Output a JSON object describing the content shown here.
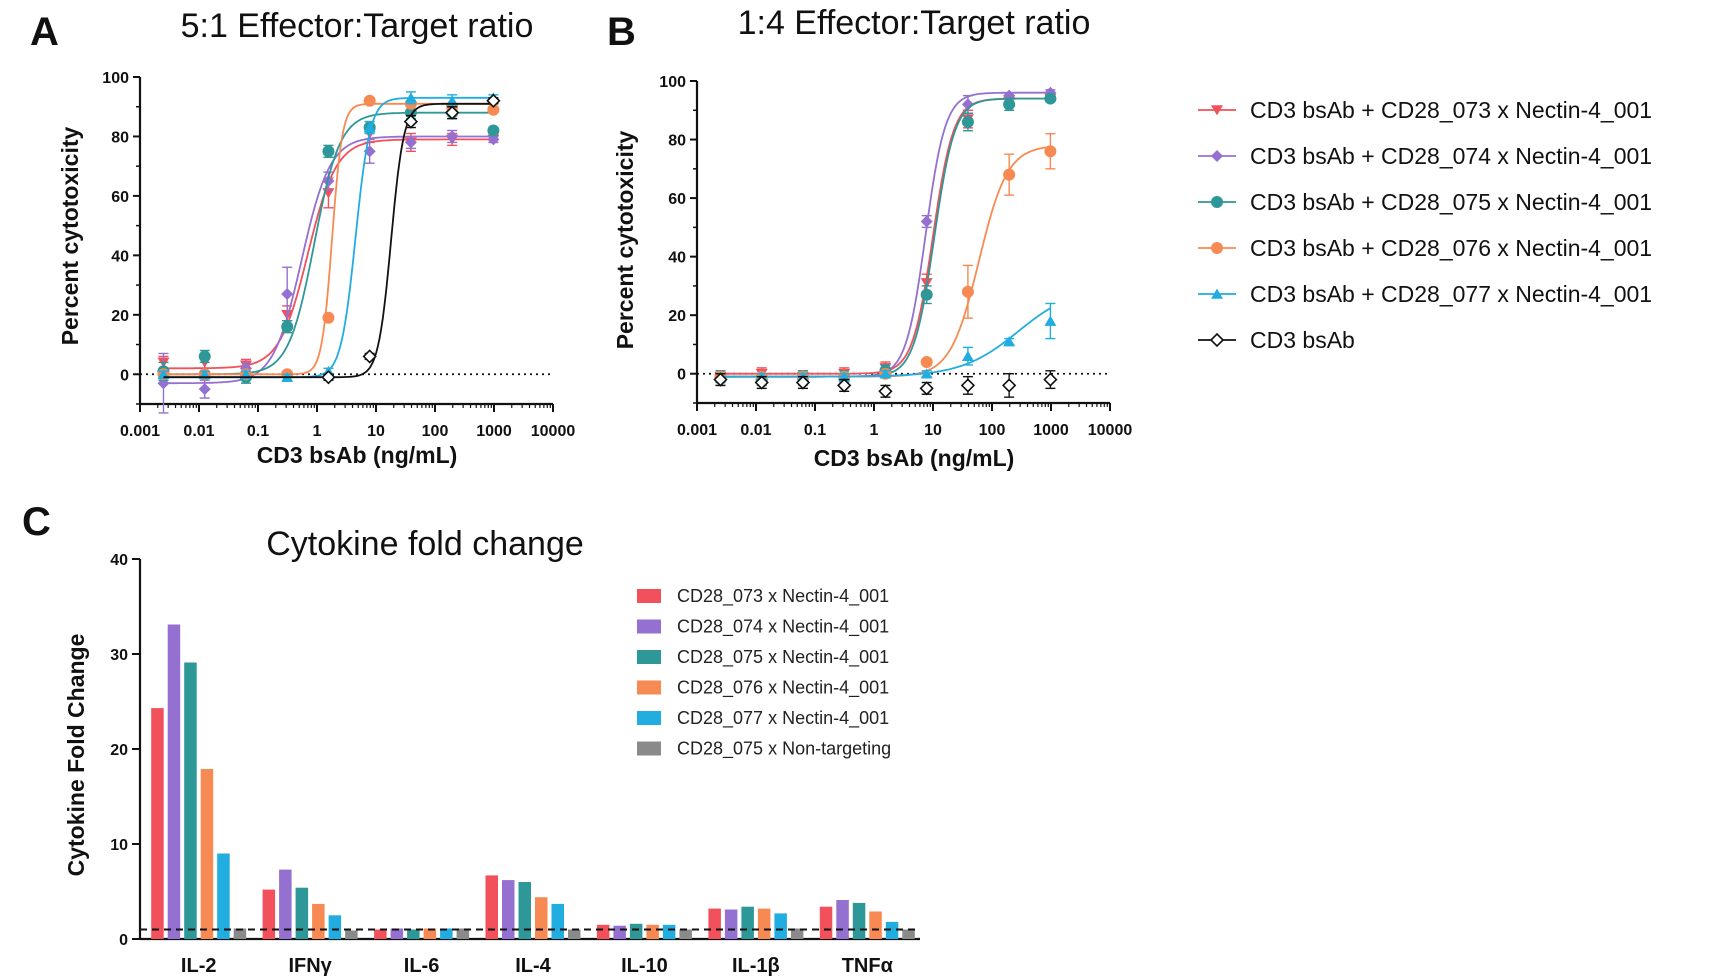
{
  "colors": {
    "s073": "#f2505a",
    "s074": "#9470d0",
    "s075": "#2e9797",
    "s076": "#f78a52",
    "s077": "#21ade0",
    "cd3": "#111111",
    "nontarget": "#8a8a8a"
  },
  "chart_data": [
    {
      "panel": "A",
      "type": "line",
      "title": "5:1 Effector:Target ratio",
      "xlabel": "CD3 bsAb (ng/mL)",
      "ylabel": "Percent cytotoxicity",
      "xscale": "log",
      "xlim": [
        0.001,
        10000
      ],
      "ylim": [
        -10,
        100
      ],
      "xticks": [
        "0.001",
        "0.01",
        "0.1",
        "1",
        "10",
        "100",
        "1000",
        "10000"
      ],
      "yticks": [
        "0",
        "20",
        "40",
        "60",
        "80",
        "100"
      ],
      "reference_line": 0,
      "x": [
        0.0025,
        0.0125,
        0.0625,
        0.3125,
        1.5625,
        7.8125,
        39.0625,
        195.3125,
        976.5625
      ],
      "series": [
        {
          "name": "CD3 bsAb + CD28_073 x Nectin-4_001",
          "color_key": "s073",
          "marker": "triangle-down",
          "y": [
            4,
            4,
            3,
            20,
            61,
            81,
            78,
            79,
            79
          ],
          "err": [
            2,
            2,
            2,
            3,
            5,
            3,
            3,
            2,
            1
          ],
          "fit": {
            "bottom": 2,
            "top": 79,
            "ec50": 0.7,
            "hill": 1.8
          }
        },
        {
          "name": "CD3 bsAb + CD28_074 x Nectin-4_001",
          "color_key": "s074",
          "marker": "diamond",
          "y": [
            -3,
            -5,
            2,
            27,
            65,
            75,
            78,
            80,
            79
          ],
          "err": [
            10,
            3,
            2,
            9,
            3,
            4,
            2,
            2,
            1
          ],
          "fit": {
            "bottom": -3,
            "top": 80,
            "ec50": 0.55,
            "hill": 1.8
          }
        },
        {
          "name": "CD3 bsAb + CD28_075 x Nectin-4_001",
          "color_key": "s075",
          "marker": "circle",
          "y": [
            1,
            6,
            -1,
            16,
            75,
            83,
            88,
            88,
            82
          ],
          "err": [
            3,
            2,
            2,
            2,
            2,
            2,
            2,
            2,
            1
          ],
          "fit": {
            "bottom": 0,
            "top": 88,
            "ec50": 0.9,
            "hill": 2.0
          }
        },
        {
          "name": "CD3 bsAb + CD28_076 x Nectin-4_001",
          "color_key": "s076",
          "marker": "circle",
          "y": [
            0,
            0,
            0,
            0,
            19,
            92,
            91,
            90,
            89
          ],
          "err": [
            1,
            1,
            1,
            1,
            1,
            1,
            1,
            1,
            1
          ],
          "fit": {
            "bottom": 0,
            "top": 91,
            "ec50": 1.8,
            "hill": 5.0
          }
        },
        {
          "name": "CD3 bsAb + CD28_077 x Nectin-4_001",
          "color_key": "s077",
          "marker": "triangle-up",
          "y": [
            0,
            0,
            0,
            -1,
            1,
            83,
            93,
            92,
            93
          ],
          "err": [
            1,
            1,
            1,
            1,
            1,
            2,
            2,
            2,
            1
          ],
          "fit": {
            "bottom": -1,
            "top": 93,
            "ec50": 4.5,
            "hill": 3.5
          }
        },
        {
          "name": "CD3 bsAb",
          "color_key": "cd3",
          "marker": "open-diamond",
          "y": [
            null,
            null,
            null,
            null,
            -1,
            6,
            85,
            88,
            92
          ],
          "err": [
            0,
            0,
            0,
            0,
            1,
            1,
            2,
            2,
            1
          ],
          "fit": {
            "bottom": -1,
            "top": 91,
            "ec50": 18,
            "hill": 4.0
          }
        }
      ]
    },
    {
      "panel": "B",
      "type": "line",
      "title": "1:4 Effector:Target ratio",
      "xlabel": "CD3 bsAb (ng/mL)",
      "ylabel": "Percent cytotoxicity",
      "xscale": "log",
      "xlim": [
        0.001,
        10000
      ],
      "ylim": [
        -10,
        100
      ],
      "xticks": [
        "0.001",
        "0.01",
        "0.1",
        "1",
        "10",
        "100",
        "1000",
        "10000"
      ],
      "yticks": [
        "0",
        "20",
        "40",
        "60",
        "80",
        "100"
      ],
      "reference_line": 0,
      "x": [
        0.0025,
        0.0125,
        0.0625,
        0.3125,
        1.5625,
        7.8125,
        39.0625,
        195.3125,
        976.5625
      ],
      "series": [
        {
          "name": "CD3 bsAb + CD28_073 x Nectin-4_001",
          "color_key": "s073",
          "marker": "triangle-down",
          "y": [
            -1,
            0,
            -1,
            0,
            2,
            31,
            87,
            93,
            94
          ],
          "err": [
            2,
            2,
            2,
            2,
            2,
            3,
            3,
            2,
            1
          ],
          "fit": {
            "bottom": 0,
            "top": 94,
            "ec50": 10,
            "hill": 2.5
          }
        },
        {
          "name": "CD3 bsAb + CD28_074 x Nectin-4_001",
          "color_key": "s074",
          "marker": "diamond",
          "y": [
            -2,
            -2,
            -2,
            -2,
            1,
            52,
            92,
            95,
            96
          ],
          "err": [
            2,
            2,
            2,
            2,
            2,
            2,
            3,
            1,
            1
          ],
          "fit": {
            "bottom": -1,
            "top": 96,
            "ec50": 7.5,
            "hill": 2.6
          }
        },
        {
          "name": "CD3 bsAb + CD28_075 x Nectin-4_001",
          "color_key": "s075",
          "marker": "circle",
          "y": [
            -1,
            -2,
            -1,
            -1,
            1,
            27,
            86,
            92,
            94
          ],
          "err": [
            2,
            2,
            2,
            2,
            2,
            3,
            3,
            2,
            1
          ],
          "fit": {
            "bottom": -1,
            "top": 94,
            "ec50": 10.5,
            "hill": 2.5
          }
        },
        {
          "name": "CD3 bsAb + CD28_076 x Nectin-4_001",
          "color_key": "s076",
          "marker": "circle",
          "y": [
            -1,
            -1,
            -1,
            -1,
            0,
            4,
            28,
            68,
            76
          ],
          "err": [
            1,
            1,
            1,
            1,
            1,
            1,
            9,
            7,
            6
          ],
          "fit": {
            "bottom": -1,
            "top": 78,
            "ec50": 60,
            "hill": 1.8
          }
        },
        {
          "name": "CD3 bsAb + CD28_077 x Nectin-4_001",
          "color_key": "s077",
          "marker": "triangle-up",
          "y": [
            -1,
            -1,
            -1,
            -1,
            0,
            0,
            6,
            11,
            18
          ],
          "err": [
            1,
            1,
            1,
            1,
            1,
            1,
            3,
            1,
            6
          ],
          "fit": {
            "bottom": -1,
            "top": 30,
            "ec50": 280,
            "hill": 0.9
          }
        },
        {
          "name": "CD3 bsAb",
          "color_key": "cd3",
          "marker": "open-diamond",
          "y": [
            -2,
            -3,
            -3,
            -4,
            -6,
            -5,
            -4,
            -4,
            -2
          ],
          "err": [
            2,
            2,
            2,
            2,
            2,
            2,
            3,
            4,
            3
          ],
          "fit": null
        }
      ],
      "legend": [
        "CD3 bsAb + CD28_073 x Nectin-4_001",
        "CD3 bsAb + CD28_074 x Nectin-4_001",
        "CD3 bsAb + CD28_075 x Nectin-4_001",
        "CD3 bsAb + CD28_076 x Nectin-4_001",
        "CD3 bsAb + CD28_077 x Nectin-4_001",
        "CD3 bsAb"
      ]
    },
    {
      "panel": "C",
      "type": "bar",
      "title": "Cytokine fold change",
      "xlabel": "",
      "ylabel": "Cytokine Fold Change",
      "ylim": [
        0,
        40
      ],
      "yticks": [
        "0",
        "10",
        "20",
        "30",
        "40"
      ],
      "reference_line": 1,
      "categories": [
        "IL-2",
        "IFNγ",
        "IL-6",
        "IL-4",
        "IL-10",
        "IL-1β",
        "TNFα"
      ],
      "series": [
        {
          "name": "CD28_073 x Nectin-4_001",
          "color_key": "s073",
          "values": [
            24.3,
            5.2,
            1.0,
            6.7,
            1.5,
            3.2,
            3.4
          ]
        },
        {
          "name": "CD28_074 x Nectin-4_001",
          "color_key": "s074",
          "values": [
            33.1,
            7.3,
            1.1,
            6.2,
            1.4,
            3.1,
            4.1
          ]
        },
        {
          "name": "CD28_075 x Nectin-4_001",
          "color_key": "s075",
          "values": [
            29.1,
            5.4,
            1.0,
            6.0,
            1.6,
            3.4,
            3.8
          ]
        },
        {
          "name": "CD28_076 x Nectin-4_001",
          "color_key": "s076",
          "values": [
            17.9,
            3.7,
            1.1,
            4.4,
            1.5,
            3.2,
            2.9
          ]
        },
        {
          "name": "CD28_077 x Nectin-4_001",
          "color_key": "s077",
          "values": [
            9.0,
            2.5,
            1.1,
            3.7,
            1.5,
            2.7,
            1.8
          ]
        },
        {
          "name": "CD28_075 x Non-targeting",
          "color_key": "nontarget",
          "values": [
            1.1,
            0.9,
            1.1,
            1.0,
            1.0,
            1.1,
            1.0
          ]
        }
      ]
    }
  ]
}
